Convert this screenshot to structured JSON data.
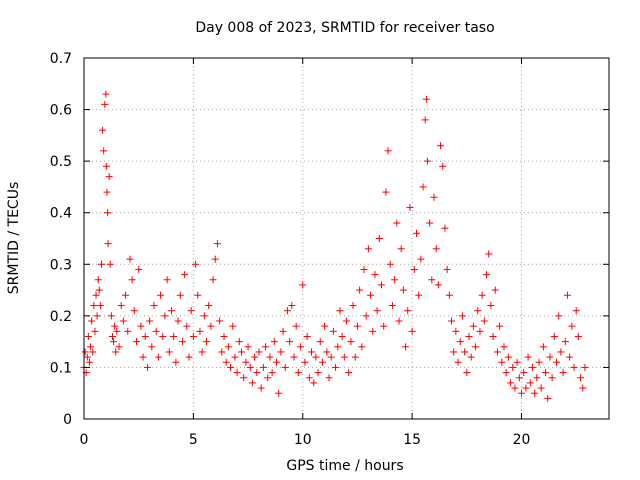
{
  "chart_data": {
    "type": "scatter",
    "title": "Day 008 of 2023, SRMTID for receiver taso",
    "xlabel": "GPS time / hours",
    "ylabel": "SRMTID / TECUs",
    "xlim": [
      0,
      24
    ],
    "ylim": [
      0,
      0.7
    ],
    "xticks": [
      0,
      5,
      10,
      15,
      20
    ],
    "yticks": [
      0,
      0.1,
      0.2,
      0.3,
      0.4,
      0.5,
      0.6,
      0.7
    ],
    "xtick_labels": [
      "0",
      "5",
      "10",
      "15",
      "20"
    ],
    "ytick_labels": [
      "0",
      "0.1",
      "0.2",
      "0.3",
      "0.4",
      "0.5",
      "0.6",
      "0.7"
    ],
    "grid": true,
    "marker": "+",
    "color": "#ff0000",
    "series": [
      {
        "name": "SRMTID",
        "points": [
          [
            0.0,
            0.1
          ],
          [
            0.05,
            0.13
          ],
          [
            0.1,
            0.09
          ],
          [
            0.15,
            0.12
          ],
          [
            0.2,
            0.16
          ],
          [
            0.25,
            0.11
          ],
          [
            0.3,
            0.14
          ],
          [
            0.35,
            0.19
          ],
          [
            0.4,
            0.13
          ],
          [
            0.45,
            0.22
          ],
          [
            0.5,
            0.17
          ],
          [
            0.55,
            0.24
          ],
          [
            0.6,
            0.2
          ],
          [
            0.65,
            0.27
          ],
          [
            0.7,
            0.25
          ],
          [
            0.75,
            0.22
          ],
          [
            0.8,
            0.3
          ],
          [
            0.85,
            0.56
          ],
          [
            0.9,
            0.52
          ],
          [
            0.95,
            0.61
          ],
          [
            1.0,
            0.63
          ],
          [
            1.02,
            0.49
          ],
          [
            1.05,
            0.44
          ],
          [
            1.08,
            0.4
          ],
          [
            1.1,
            0.34
          ],
          [
            1.15,
            0.47
          ],
          [
            1.2,
            0.3
          ],
          [
            1.25,
            0.2
          ],
          [
            1.3,
            0.16
          ],
          [
            1.35,
            0.15
          ],
          [
            1.4,
            0.18
          ],
          [
            1.45,
            0.13
          ],
          [
            1.5,
            0.17
          ],
          [
            1.6,
            0.14
          ],
          [
            1.7,
            0.22
          ],
          [
            1.8,
            0.19
          ],
          [
            1.9,
            0.24
          ],
          [
            2.0,
            0.17
          ],
          [
            2.1,
            0.31
          ],
          [
            2.2,
            0.27
          ],
          [
            2.3,
            0.21
          ],
          [
            2.4,
            0.15
          ],
          [
            2.5,
            0.29
          ],
          [
            2.6,
            0.18
          ],
          [
            2.7,
            0.12
          ],
          [
            2.8,
            0.16
          ],
          [
            2.9,
            0.1
          ],
          [
            3.0,
            0.19
          ],
          [
            3.1,
            0.14
          ],
          [
            3.2,
            0.22
          ],
          [
            3.3,
            0.17
          ],
          [
            3.4,
            0.12
          ],
          [
            3.5,
            0.24
          ],
          [
            3.6,
            0.16
          ],
          [
            3.7,
            0.2
          ],
          [
            3.8,
            0.27
          ],
          [
            3.9,
            0.13
          ],
          [
            4.0,
            0.21
          ],
          [
            4.1,
            0.16
          ],
          [
            4.2,
            0.11
          ],
          [
            4.3,
            0.19
          ],
          [
            4.4,
            0.24
          ],
          [
            4.5,
            0.15
          ],
          [
            4.6,
            0.28
          ],
          [
            4.7,
            0.18
          ],
          [
            4.8,
            0.12
          ],
          [
            4.9,
            0.21
          ],
          [
            5.0,
            0.16
          ],
          [
            5.1,
            0.3
          ],
          [
            5.2,
            0.24
          ],
          [
            5.3,
            0.17
          ],
          [
            5.4,
            0.13
          ],
          [
            5.5,
            0.2
          ],
          [
            5.6,
            0.15
          ],
          [
            5.7,
            0.22
          ],
          [
            5.8,
            0.18
          ],
          [
            5.9,
            0.27
          ],
          [
            6.0,
            0.31
          ],
          [
            6.1,
            0.34
          ],
          [
            6.2,
            0.19
          ],
          [
            6.3,
            0.13
          ],
          [
            6.4,
            0.16
          ],
          [
            6.5,
            0.11
          ],
          [
            6.6,
            0.14
          ],
          [
            6.7,
            0.1
          ],
          [
            6.8,
            0.18
          ],
          [
            6.9,
            0.12
          ],
          [
            7.0,
            0.09
          ],
          [
            7.1,
            0.15
          ],
          [
            7.2,
            0.13
          ],
          [
            7.3,
            0.08
          ],
          [
            7.4,
            0.11
          ],
          [
            7.5,
            0.14
          ],
          [
            7.6,
            0.1
          ],
          [
            7.7,
            0.07
          ],
          [
            7.8,
            0.12
          ],
          [
            7.9,
            0.09
          ],
          [
            8.0,
            0.13
          ],
          [
            8.1,
            0.06
          ],
          [
            8.2,
            0.1
          ],
          [
            8.3,
            0.14
          ],
          [
            8.4,
            0.08
          ],
          [
            8.5,
            0.12
          ],
          [
            8.6,
            0.09
          ],
          [
            8.7,
            0.15
          ],
          [
            8.8,
            0.11
          ],
          [
            8.9,
            0.05
          ],
          [
            9.0,
            0.13
          ],
          [
            9.1,
            0.17
          ],
          [
            9.2,
            0.1
          ],
          [
            9.3,
            0.21
          ],
          [
            9.4,
            0.15
          ],
          [
            9.5,
            0.22
          ],
          [
            9.6,
            0.12
          ],
          [
            9.7,
            0.18
          ],
          [
            9.8,
            0.09
          ],
          [
            9.9,
            0.14
          ],
          [
            10.0,
            0.26
          ],
          [
            10.1,
            0.11
          ],
          [
            10.2,
            0.16
          ],
          [
            10.3,
            0.08
          ],
          [
            10.4,
            0.13
          ],
          [
            10.5,
            0.07
          ],
          [
            10.6,
            0.12
          ],
          [
            10.7,
            0.09
          ],
          [
            10.8,
            0.15
          ],
          [
            10.9,
            0.11
          ],
          [
            11.0,
            0.18
          ],
          [
            11.1,
            0.13
          ],
          [
            11.2,
            0.08
          ],
          [
            11.3,
            0.12
          ],
          [
            11.4,
            0.17
          ],
          [
            11.5,
            0.1
          ],
          [
            11.6,
            0.14
          ],
          [
            11.7,
            0.21
          ],
          [
            11.8,
            0.16
          ],
          [
            11.9,
            0.12
          ],
          [
            12.0,
            0.19
          ],
          [
            12.1,
            0.09
          ],
          [
            12.2,
            0.15
          ],
          [
            12.3,
            0.22
          ],
          [
            12.4,
            0.12
          ],
          [
            12.5,
            0.18
          ],
          [
            12.6,
            0.25
          ],
          [
            12.7,
            0.14
          ],
          [
            12.8,
            0.29
          ],
          [
            12.9,
            0.2
          ],
          [
            13.0,
            0.33
          ],
          [
            13.1,
            0.24
          ],
          [
            13.2,
            0.17
          ],
          [
            13.3,
            0.28
          ],
          [
            13.4,
            0.21
          ],
          [
            13.5,
            0.35
          ],
          [
            13.6,
            0.26
          ],
          [
            13.7,
            0.18
          ],
          [
            13.8,
            0.44
          ],
          [
            13.9,
            0.52
          ],
          [
            14.0,
            0.3
          ],
          [
            14.1,
            0.22
          ],
          [
            14.2,
            0.27
          ],
          [
            14.3,
            0.38
          ],
          [
            14.4,
            0.19
          ],
          [
            14.5,
            0.33
          ],
          [
            14.6,
            0.25
          ],
          [
            14.7,
            0.14
          ],
          [
            14.8,
            0.21
          ],
          [
            14.9,
            0.41
          ],
          [
            15.0,
            0.17
          ],
          [
            15.1,
            0.29
          ],
          [
            15.2,
            0.36
          ],
          [
            15.3,
            0.24
          ],
          [
            15.4,
            0.31
          ],
          [
            15.5,
            0.45
          ],
          [
            15.6,
            0.58
          ],
          [
            15.65,
            0.62
          ],
          [
            15.7,
            0.5
          ],
          [
            15.8,
            0.38
          ],
          [
            15.9,
            0.27
          ],
          [
            16.0,
            0.43
          ],
          [
            16.1,
            0.33
          ],
          [
            16.2,
            0.26
          ],
          [
            16.3,
            0.53
          ],
          [
            16.4,
            0.49
          ],
          [
            16.5,
            0.37
          ],
          [
            16.6,
            0.29
          ],
          [
            16.7,
            0.24
          ],
          [
            16.8,
            0.19
          ],
          [
            16.9,
            0.13
          ],
          [
            17.0,
            0.17
          ],
          [
            17.1,
            0.11
          ],
          [
            17.2,
            0.15
          ],
          [
            17.3,
            0.2
          ],
          [
            17.4,
            0.13
          ],
          [
            17.5,
            0.09
          ],
          [
            17.6,
            0.16
          ],
          [
            17.7,
            0.12
          ],
          [
            17.8,
            0.18
          ],
          [
            17.9,
            0.14
          ],
          [
            18.0,
            0.21
          ],
          [
            18.1,
            0.17
          ],
          [
            18.2,
            0.24
          ],
          [
            18.3,
            0.19
          ],
          [
            18.4,
            0.28
          ],
          [
            18.5,
            0.32
          ],
          [
            18.6,
            0.22
          ],
          [
            18.7,
            0.16
          ],
          [
            18.8,
            0.25
          ],
          [
            18.9,
            0.13
          ],
          [
            19.0,
            0.18
          ],
          [
            19.1,
            0.11
          ],
          [
            19.2,
            0.14
          ],
          [
            19.3,
            0.09
          ],
          [
            19.4,
            0.12
          ],
          [
            19.5,
            0.07
          ],
          [
            19.6,
            0.1
          ],
          [
            19.7,
            0.06
          ],
          [
            19.8,
            0.11
          ],
          [
            19.9,
            0.08
          ],
          [
            20.0,
            0.05
          ],
          [
            20.1,
            0.09
          ],
          [
            20.2,
            0.06
          ],
          [
            20.3,
            0.12
          ],
          [
            20.4,
            0.07
          ],
          [
            20.5,
            0.1
          ],
          [
            20.6,
            0.05
          ],
          [
            20.7,
            0.08
          ],
          [
            20.8,
            0.11
          ],
          [
            20.9,
            0.06
          ],
          [
            21.0,
            0.14
          ],
          [
            21.1,
            0.09
          ],
          [
            21.2,
            0.04
          ],
          [
            21.3,
            0.12
          ],
          [
            21.4,
            0.08
          ],
          [
            21.5,
            0.16
          ],
          [
            21.6,
            0.11
          ],
          [
            21.7,
            0.2
          ],
          [
            21.8,
            0.13
          ],
          [
            21.9,
            0.09
          ],
          [
            22.0,
            0.15
          ],
          [
            22.1,
            0.24
          ],
          [
            22.2,
            0.12
          ],
          [
            22.3,
            0.18
          ],
          [
            22.4,
            0.1
          ],
          [
            22.5,
            0.21
          ],
          [
            22.6,
            0.16
          ],
          [
            22.7,
            0.08
          ],
          [
            22.8,
            0.06
          ],
          [
            22.9,
            0.1
          ]
        ]
      }
    ]
  }
}
